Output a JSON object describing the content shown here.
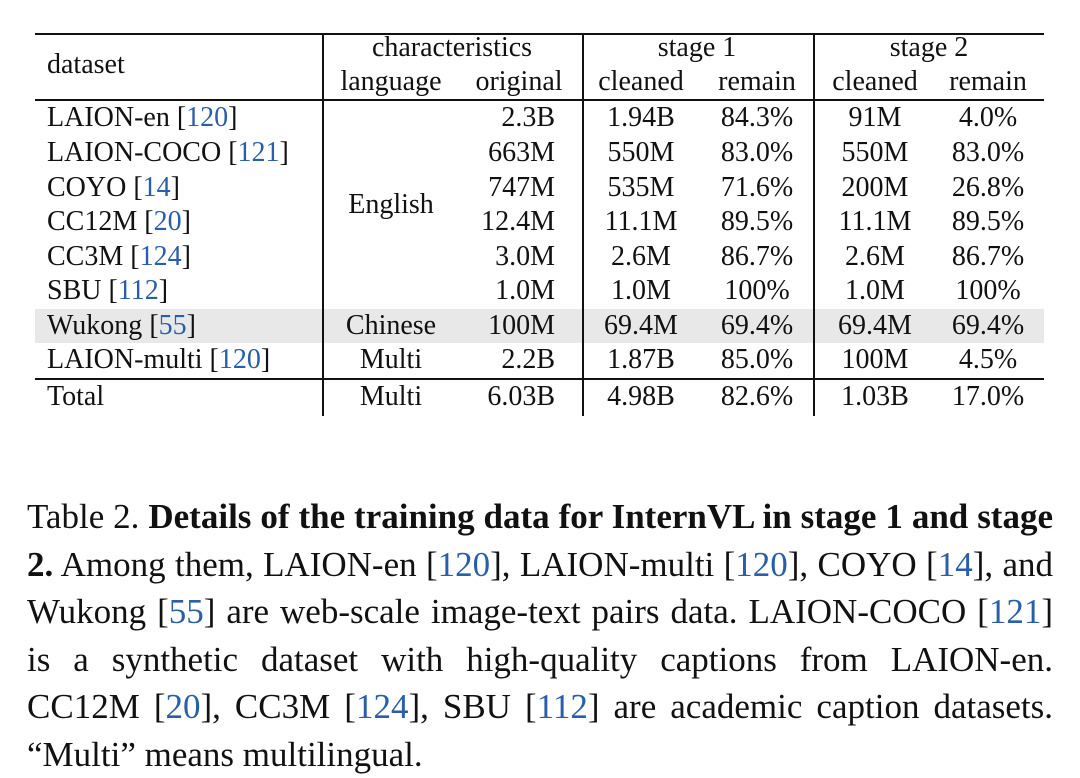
{
  "table": {
    "header": {
      "dataset": "dataset",
      "groups": [
        "characteristics",
        "stage 1",
        "stage 2"
      ],
      "subcols": [
        "language",
        "original",
        "cleaned",
        "remain",
        "cleaned",
        "remain"
      ]
    },
    "rows": [
      {
        "name": "LAION-en",
        "ref": "120",
        "original": "2.3B",
        "s1_cleaned": "1.94B",
        "s1_remain": "84.3%",
        "s2_cleaned": "91M",
        "s2_remain": "4.0%"
      },
      {
        "name": "LAION-COCO",
        "ref": "121",
        "original": "663M",
        "s1_cleaned": "550M",
        "s1_remain": "83.0%",
        "s2_cleaned": "550M",
        "s2_remain": "83.0%"
      },
      {
        "name": "COYO",
        "ref": "14",
        "original": "747M",
        "s1_cleaned": "535M",
        "s1_remain": "71.6%",
        "s2_cleaned": "200M",
        "s2_remain": "26.8%"
      },
      {
        "name": "CC12M",
        "ref": "20",
        "original": "12.4M",
        "s1_cleaned": "11.1M",
        "s1_remain": "89.5%",
        "s2_cleaned": "11.1M",
        "s2_remain": "89.5%"
      },
      {
        "name": "CC3M",
        "ref": "124",
        "original": "3.0M",
        "s1_cleaned": "2.6M",
        "s1_remain": "86.7%",
        "s2_cleaned": "2.6M",
        "s2_remain": "86.7%"
      },
      {
        "name": "SBU",
        "ref": "112",
        "original": "1.0M",
        "s1_cleaned": "1.0M",
        "s1_remain": "100%",
        "s2_cleaned": "1.0M",
        "s2_remain": "100%"
      },
      {
        "name": "Wukong",
        "ref": "55",
        "language": "Chinese",
        "original": "100M",
        "s1_cleaned": "69.4M",
        "s1_remain": "69.4%",
        "s2_cleaned": "69.4M",
        "s2_remain": "69.4%",
        "highlighted": true
      },
      {
        "name": "LAION-multi",
        "ref": "120",
        "language": "Multi",
        "original": "2.2B",
        "s1_cleaned": "1.87B",
        "s1_remain": "85.0%",
        "s2_cleaned": "100M",
        "s2_remain": "4.5%"
      }
    ],
    "english_label": "English",
    "total": {
      "name": "Total",
      "language": "Multi",
      "original": "6.03B",
      "s1_cleaned": "4.98B",
      "s1_remain": "82.6%",
      "s2_cleaned": "1.03B",
      "s2_remain": "17.0%"
    }
  },
  "caption": {
    "label": "Table 2.",
    "title": "Details of the training data for InternVL in stage 1 and stage 2.",
    "p1": " Among them, LAION-en [",
    "r1": "120",
    "p2": "], LAION-multi [",
    "r2": "120",
    "p3": "], COYO [",
    "r3": "14",
    "p4": "], and Wukong [",
    "r4": "55",
    "p5": "] are web-scale image-text pairs data. LAION-COCO [",
    "r5": "121",
    "p6": "] is a synthetic dataset with high-quality captions from LAION-en. CC12M [",
    "r6": "20",
    "p7": "], CC3M [",
    "r7": "124",
    "p8": "], SBU [",
    "r8": "112",
    "p9": "] are academic caption datasets. “Multi” means multilingual.",
    "link_color": "#2a5ea8"
  }
}
